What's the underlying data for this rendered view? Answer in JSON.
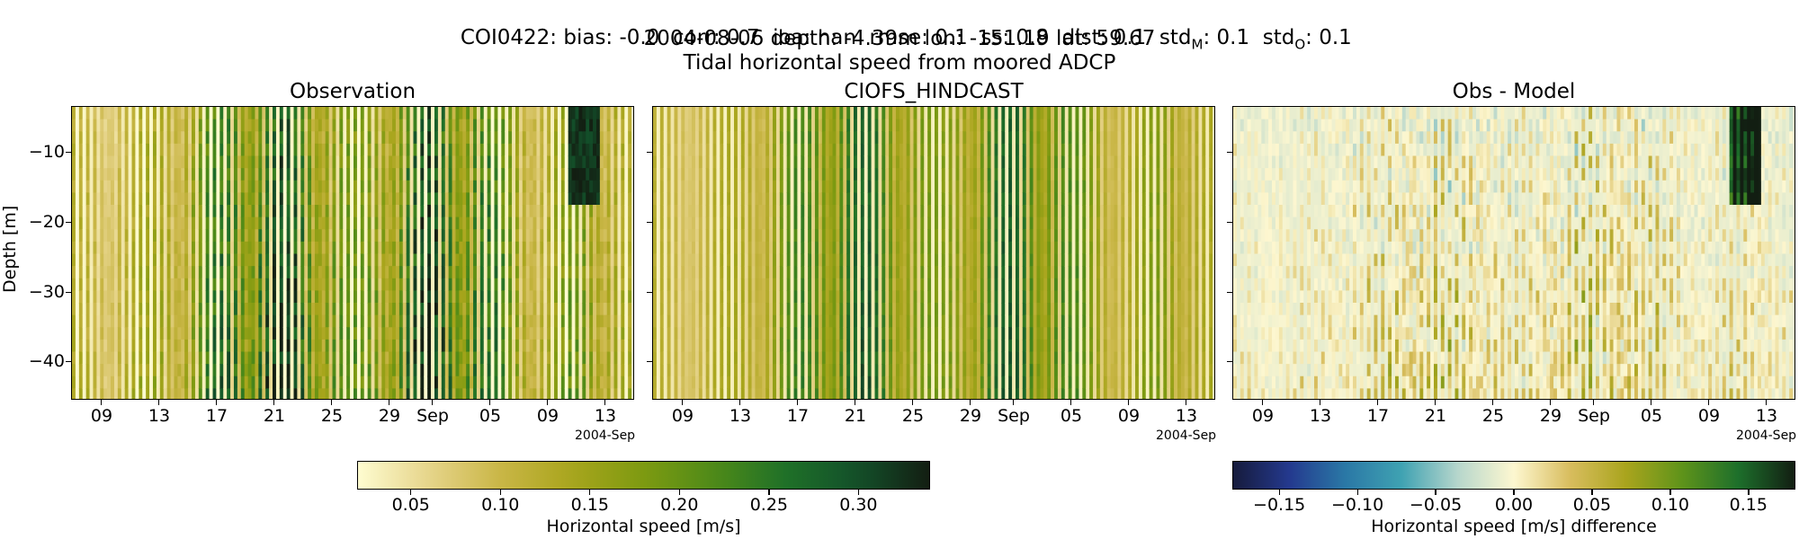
{
  "suptitle": {
    "line1_prefix": "COI0422: bias: -0.0  corr: 0.7  ioa: nan  rmse: 0.1  ss: 0.8  dist: 0.1  std",
    "line1_sub_m": "M",
    "line1_mid": ": 0.1  std",
    "line1_sub_o": "O",
    "line1_suffix": ": 0.1",
    "line2": "2004-08-06 depth: -4.39m lon: -151.19 lat: 59.67",
    "line3": "Tidal horizontal speed from moored ADCP"
  },
  "chart_data": [
    {
      "type": "heatmap",
      "title": "Observation",
      "ylabel": "Depth [m]",
      "x_range": [
        "2004-08-06",
        "2004-09-15"
      ],
      "x_tick_labels": [
        "09",
        "13",
        "17",
        "21",
        "25",
        "29",
        "Sep",
        "05",
        "09",
        "13"
      ],
      "x_offset_label": "2004-Sep",
      "ylim": [
        -45.5,
        -4.4
      ],
      "y_tick_labels": [
        "−10",
        "−20",
        "−30",
        "−40"
      ],
      "colormap": "speed",
      "vmin": 0.02,
      "vmax": 0.34
    },
    {
      "type": "heatmap",
      "title": "CIOFS_HINDCAST",
      "x_range": [
        "2004-08-06",
        "2004-09-15"
      ],
      "x_tick_labels": [
        "09",
        "13",
        "17",
        "21",
        "25",
        "29",
        "Sep",
        "05",
        "09",
        "13"
      ],
      "x_offset_label": "2004-Sep",
      "ylim": [
        -45.5,
        -4.4
      ],
      "colormap": "speed",
      "vmin": 0.02,
      "vmax": 0.34
    },
    {
      "type": "heatmap",
      "title": "Obs - Model",
      "x_range": [
        "2004-08-06",
        "2004-09-15"
      ],
      "x_tick_labels": [
        "09",
        "13",
        "17",
        "21",
        "25",
        "29",
        "Sep",
        "05",
        "09",
        "13"
      ],
      "x_offset_label": "2004-Sep",
      "ylim": [
        -45.5,
        -4.4
      ],
      "colormap": "diverging",
      "vmin": -0.18,
      "vmax": 0.18
    }
  ],
  "colorbars": [
    {
      "label": "Horizontal speed [m/s]",
      "tick_labels": [
        "0.05",
        "0.10",
        "0.15",
        "0.20",
        "0.25",
        "0.30"
      ],
      "tick_values": [
        0.05,
        0.1,
        0.15,
        0.2,
        0.25,
        0.3
      ],
      "vmin": 0.02,
      "vmax": 0.34
    },
    {
      "label": "Horizontal speed [m/s] difference",
      "tick_labels": [
        "−0.15",
        "−0.10",
        "−0.05",
        "0.00",
        "0.05",
        "0.10",
        "0.15"
      ],
      "tick_values": [
        -0.15,
        -0.1,
        -0.05,
        0.0,
        0.05,
        0.1,
        0.15
      ],
      "vmin": -0.18,
      "vmax": 0.18
    }
  ],
  "colors": {
    "speed_stops": [
      "#fefcd0",
      "#e6d48a",
      "#c9b646",
      "#a8a51c",
      "#7d9a11",
      "#4d8a18",
      "#1f7028",
      "#13502a",
      "#131e12"
    ],
    "diverging_stops": [
      "#161b3c",
      "#24398e",
      "#2a78a6",
      "#3fa2b2",
      "#b6d6cc",
      "#fdf7d0",
      "#d8bd5e",
      "#a9a41d",
      "#5e931a",
      "#1d6f2b",
      "#121e12"
    ]
  }
}
